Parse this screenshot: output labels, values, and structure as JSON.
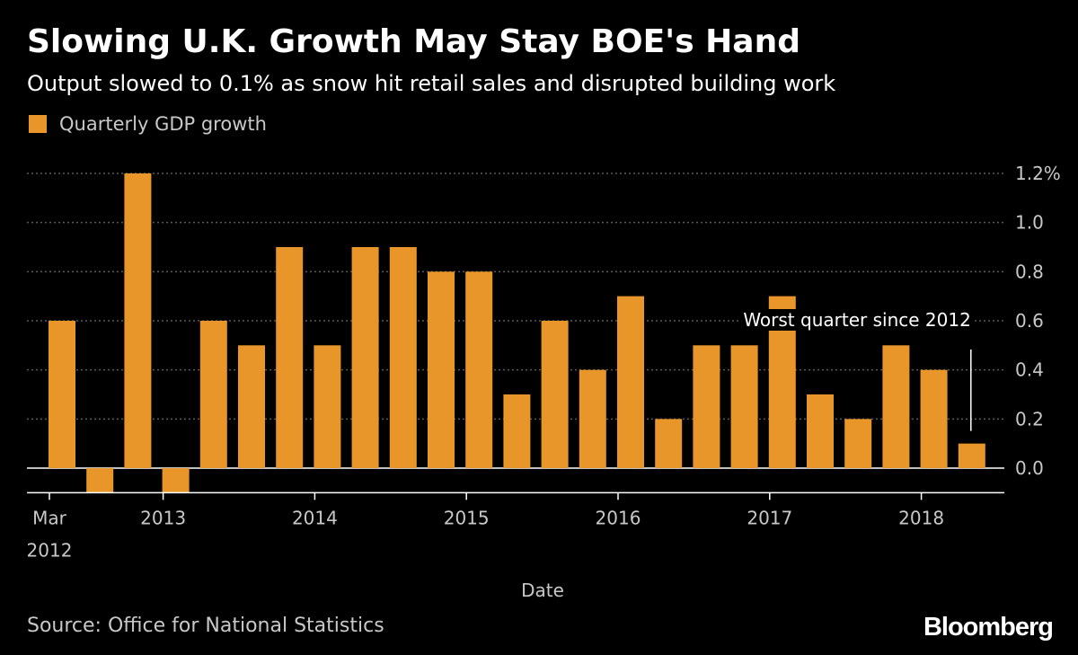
{
  "header": {
    "title": "Slowing U.K. Growth May Stay BOE's Hand",
    "subtitle": "Output slowed to 0.1% as snow hit retail sales and disrupted building work"
  },
  "footer": {
    "source": "Source: Office for National Statistics",
    "brand": "Bloomberg"
  },
  "colors": {
    "background": "#000000",
    "bar": "#e8952a",
    "grid": "#5a5a5a",
    "axis": "#ffffff",
    "text": "#ffffff",
    "muted_text": "#c8c8c8"
  },
  "chart_data": {
    "type": "bar",
    "title": "Slowing U.K. Growth May Stay BOE's Hand",
    "subtitle": "Output slowed to 0.1% as snow hit retail sales and disrupted building work",
    "legend": [
      "Quarterly GDP growth"
    ],
    "legend_position": "top-left",
    "xlabel": "Date",
    "ylabel": "",
    "ylim": [
      -0.1,
      1.2
    ],
    "y_ticks": [
      0.0,
      0.2,
      0.4,
      0.6,
      0.8,
      1.0,
      1.2
    ],
    "y_tick_labels": [
      "0.0",
      "0.2",
      "0.4",
      "0.6",
      "0.8",
      "1.0",
      "1.2%"
    ],
    "y_axis_side": "right",
    "grid": true,
    "categories": [
      "Mar 2012",
      "Jun 2012",
      "Sep 2012",
      "Dec 2012",
      "Mar 2013",
      "Jun 2013",
      "Sep 2013",
      "Dec 2013",
      "Mar 2014",
      "Jun 2014",
      "Sep 2014",
      "Dec 2014",
      "Mar 2015",
      "Jun 2015",
      "Sep 2015",
      "Dec 2015",
      "Mar 2016",
      "Jun 2016",
      "Sep 2016",
      "Dec 2016",
      "Mar 2017",
      "Jun 2017",
      "Sep 2017",
      "Dec 2017",
      "Mar 2018"
    ],
    "series": [
      {
        "name": "Quarterly GDP growth",
        "values": [
          0.6,
          -0.1,
          1.2,
          -0.1,
          0.6,
          0.5,
          0.9,
          0.5,
          0.9,
          0.9,
          0.8,
          0.8,
          0.3,
          0.6,
          0.4,
          0.7,
          0.2,
          0.5,
          0.5,
          0.7,
          0.3,
          0.2,
          0.5,
          0.4,
          0.1
        ]
      }
    ],
    "x_ticks": [
      {
        "index": 0,
        "label": "Mar",
        "label2": "2012"
      },
      {
        "index": 3,
        "label": "2013",
        "label2": ""
      },
      {
        "index": 7,
        "label": "2014",
        "label2": ""
      },
      {
        "index": 11,
        "label": "2015",
        "label2": ""
      },
      {
        "index": 15,
        "label": "2016",
        "label2": ""
      },
      {
        "index": 19,
        "label": "2017",
        "label2": ""
      },
      {
        "index": 23,
        "label": "2018",
        "label2": ""
      }
    ],
    "annotations": [
      {
        "text": "Worst quarter since 2012",
        "target_index": 24,
        "target_value": 0.1
      }
    ]
  }
}
